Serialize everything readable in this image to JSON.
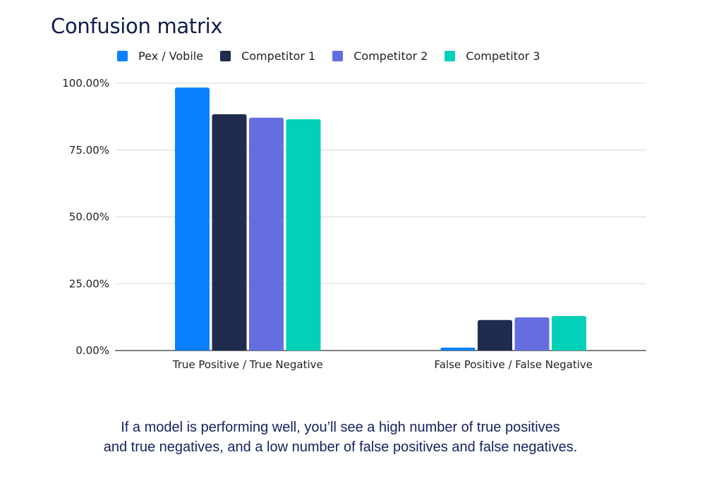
{
  "title": "Confusion matrix",
  "caption": {
    "line1": "If a model is performing well, you’ll see a high number of true positives",
    "line2": "and true negatives, and a low number of false positives and false negatives."
  },
  "chart_data": {
    "type": "bar",
    "title": "Confusion matrix",
    "xlabel": "",
    "ylabel": "",
    "categories": [
      "True Positive / True Negative",
      "False Positive / False Negative"
    ],
    "series": [
      {
        "name": "Pex / Vobile",
        "color": "#0a80ff",
        "values": [
          98.4,
          1.1
        ]
      },
      {
        "name": "Competitor 1",
        "color": "#1f2b4f",
        "values": [
          88.4,
          11.4
        ]
      },
      {
        "name": "Competitor 2",
        "color": "#646ee0",
        "values": [
          87.1,
          12.4
        ]
      },
      {
        "name": "Competitor 3",
        "color": "#00d1b8",
        "values": [
          86.5,
          12.9
        ]
      }
    ],
    "ylim": [
      0,
      100
    ],
    "yticks": [
      "0.00%",
      "25.00%",
      "50.00%",
      "75.00%",
      "100.00%"
    ],
    "ytick_values": [
      0,
      25,
      50,
      75,
      100
    ],
    "grid": true,
    "legend_position": "top-left"
  }
}
